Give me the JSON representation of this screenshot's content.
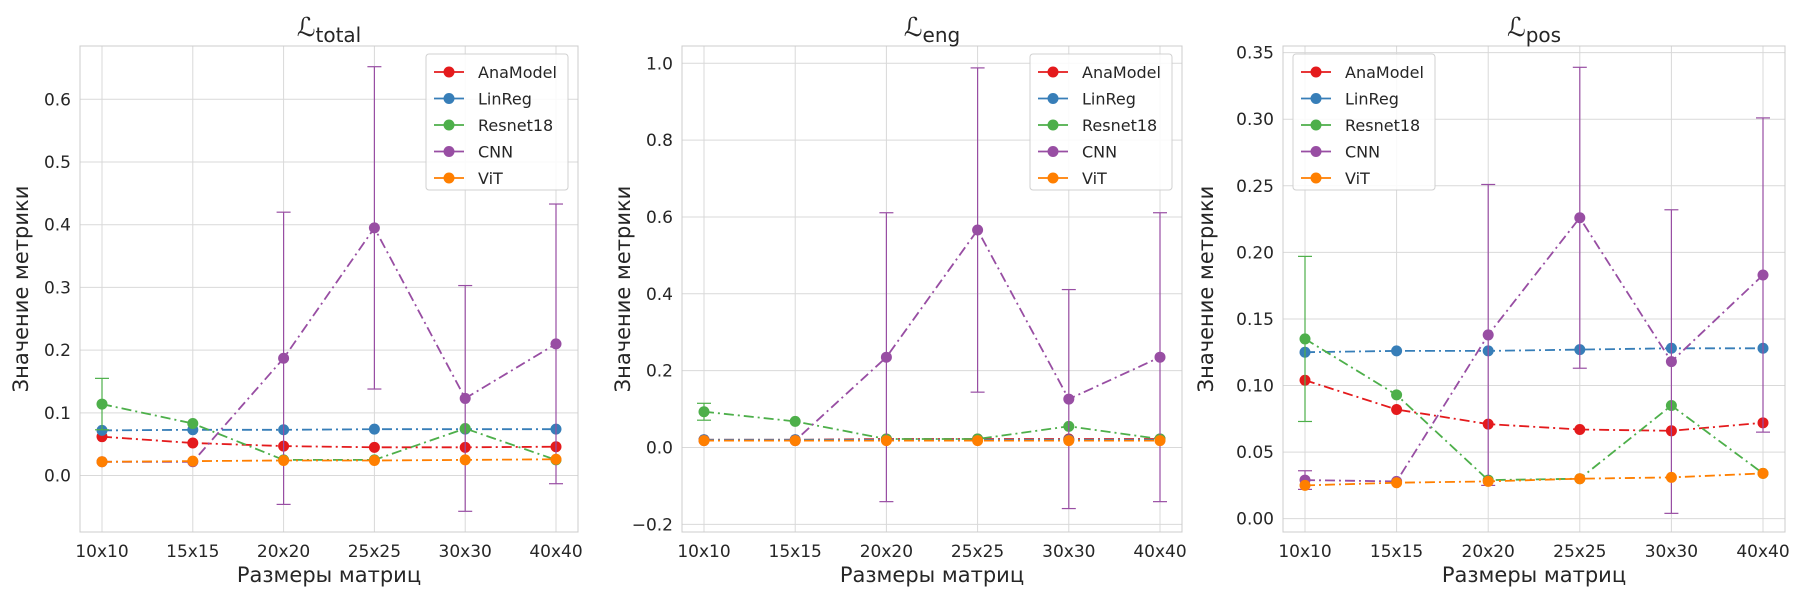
{
  "figure": {
    "colors": {
      "AnaModel": "#e41a1c",
      "LinReg": "#377eb8",
      "Resnet18": "#4daf4a",
      "CNN": "#984ea3",
      "ViT": "#ff7f00",
      "grid": "#d9d9d9",
      "frame": "#cccccc"
    }
  },
  "chart_data": [
    {
      "type": "line",
      "title_main": "ℒ",
      "title_sub": "total",
      "xlabel": "Размеры матриц",
      "ylabel": "Значение метрики",
      "categories": [
        "10x10",
        "15x15",
        "20x20",
        "25x25",
        "30x30",
        "40x40"
      ],
      "ylim": [
        -0.09,
        0.685
      ],
      "yticks": [
        0.0,
        0.1,
        0.2,
        0.3,
        0.4,
        0.5,
        0.6
      ],
      "ytick_labels": [
        "0.0",
        "0.1",
        "0.2",
        "0.3",
        "0.4",
        "0.5",
        "0.6"
      ],
      "grid": true,
      "legend_position": "top-right",
      "series": [
        {
          "name": "AnaModel",
          "values": [
            0.062,
            0.052,
            0.047,
            0.045,
            0.045,
            0.046
          ]
        },
        {
          "name": "LinReg",
          "values": [
            0.072,
            0.073,
            0.073,
            0.074,
            0.074,
            0.074
          ]
        },
        {
          "name": "Resnet18",
          "values": [
            0.114,
            0.083,
            0.025,
            0.025,
            0.075,
            0.025
          ],
          "err": [
            0.041,
            0,
            0,
            0,
            0,
            0
          ]
        },
        {
          "name": "CNN",
          "values": [
            0.022,
            0.022,
            0.187,
            0.395,
            0.123,
            0.21
          ],
          "err": [
            0,
            0,
            0.233,
            0.257,
            0.18,
            0.223
          ]
        },
        {
          "name": "ViT",
          "values": [
            0.022,
            0.023,
            0.024,
            0.024,
            0.025,
            0.026
          ]
        }
      ]
    },
    {
      "type": "line",
      "title_main": "ℒ",
      "title_sub": "eng",
      "xlabel": "Размеры матриц",
      "ylabel": "Значение метрики",
      "categories": [
        "10x10",
        "15x15",
        "20x20",
        "25x25",
        "30x30",
        "40x40"
      ],
      "ylim": [
        -0.22,
        1.045
      ],
      "yticks": [
        -0.2,
        0.0,
        0.2,
        0.4,
        0.6,
        0.8,
        1.0
      ],
      "ytick_labels": [
        "−0.2",
        "0.0",
        "0.2",
        "0.4",
        "0.6",
        "0.8",
        "1.0"
      ],
      "grid": true,
      "legend_position": "top-right",
      "series": [
        {
          "name": "AnaModel",
          "values": [
            0.02,
            0.02,
            0.022,
            0.022,
            0.022,
            0.022
          ]
        },
        {
          "name": "LinReg",
          "values": [
            0.02,
            0.02,
            0.02,
            0.02,
            0.02,
            0.02
          ]
        },
        {
          "name": "Resnet18",
          "values": [
            0.093,
            0.068,
            0.022,
            0.022,
            0.055,
            0.022
          ],
          "err": [
            0.022,
            0,
            0,
            0,
            0,
            0
          ]
        },
        {
          "name": "CNN",
          "values": [
            0.018,
            0.018,
            0.235,
            0.566,
            0.126,
            0.235
          ],
          "err": [
            0,
            0,
            0.376,
            0.422,
            0.285,
            0.376
          ]
        },
        {
          "name": "ViT",
          "values": [
            0.018,
            0.018,
            0.018,
            0.018,
            0.018,
            0.018
          ]
        }
      ]
    },
    {
      "type": "line",
      "title_main": "ℒ",
      "title_sub": "pos",
      "xlabel": "Размеры матриц",
      "ylabel": "Значение метрики",
      "categories": [
        "10x10",
        "15x15",
        "20x20",
        "25x25",
        "30x30",
        "40x40"
      ],
      "ylim": [
        -0.01,
        0.355
      ],
      "yticks": [
        0.0,
        0.05,
        0.1,
        0.15,
        0.2,
        0.25,
        0.3,
        0.35
      ],
      "ytick_labels": [
        "0.00",
        "0.05",
        "0.10",
        "0.15",
        "0.20",
        "0.25",
        "0.30",
        "0.35"
      ],
      "grid": true,
      "legend_position": "top-left",
      "series": [
        {
          "name": "AnaModel",
          "values": [
            0.104,
            0.082,
            0.071,
            0.067,
            0.066,
            0.072
          ]
        },
        {
          "name": "LinReg",
          "values": [
            0.125,
            0.126,
            0.126,
            0.127,
            0.128,
            0.128
          ]
        },
        {
          "name": "Resnet18",
          "values": [
            0.135,
            0.093,
            0.029,
            0.03,
            0.085,
            0.034
          ],
          "err": [
            0.062,
            0,
            0,
            0,
            0,
            0
          ]
        },
        {
          "name": "CNN",
          "values": [
            0.029,
            0.028,
            0.138,
            0.226,
            0.118,
            0.183
          ],
          "err": [
            0.007,
            0,
            0.113,
            0.113,
            0.114,
            0.118
          ]
        },
        {
          "name": "ViT",
          "values": [
            0.025,
            0.027,
            0.028,
            0.03,
            0.031,
            0.034
          ]
        }
      ]
    }
  ]
}
